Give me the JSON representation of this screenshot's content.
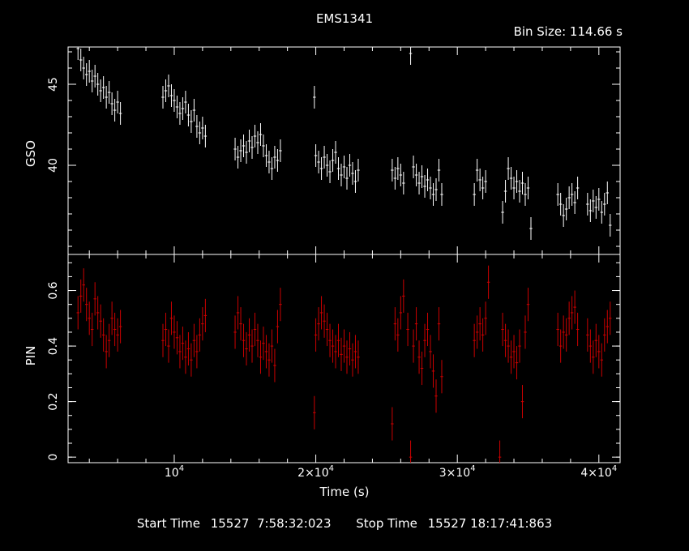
{
  "title": "EMS1341",
  "bin_size_text": "Bin Size: 114.66 s",
  "footer": {
    "start_label": "Start Time",
    "start_value": "15527  7:58:32:023",
    "stop_label": "Stop Time",
    "stop_value": "15527 18:17:41:863"
  },
  "colors": {
    "background": "#000000",
    "axes": "#ffffff",
    "gso": "#ffffff",
    "pin": "#cc0000"
  },
  "chart_data": {
    "type": "scatter",
    "xlabel": "Time (s)",
    "xlim": [
      2500,
      41500
    ],
    "x_ticks": [
      {
        "value": 10000,
        "mantissa": "10",
        "exponent": "4"
      },
      {
        "value": 20000,
        "mantissa": "2×10",
        "exponent": "4"
      },
      {
        "value": 30000,
        "mantissa": "3×10",
        "exponent": "4"
      },
      {
        "value": 40000,
        "mantissa": "4×10",
        "exponent": "4"
      }
    ],
    "panels": [
      {
        "ylabel": "GSO",
        "ylim": [
          34.5,
          47.3
        ],
        "y_ticks": [
          40,
          45
        ],
        "y_tick_labels": [
          "40",
          "45"
        ],
        "y_minor_step": 1,
        "color": "#ffffff",
        "series": [
          {
            "points": [
              [
                3200,
                47.2
              ],
              [
                3400,
                46.5
              ],
              [
                3600,
                46.0
              ],
              [
                3800,
                45.6
              ],
              [
                4000,
                45.8
              ],
              [
                4200,
                45.2
              ],
              [
                4400,
                45.5
              ],
              [
                4600,
                45.0
              ],
              [
                4800,
                44.6
              ],
              [
                5000,
                44.8
              ],
              [
                5200,
                44.2
              ],
              [
                5400,
                44.5
              ],
              [
                5600,
                43.8
              ],
              [
                5800,
                43.4
              ],
              [
                6000,
                43.9
              ],
              [
                6200,
                43.2
              ],
              [
                9200,
                44.2
              ],
              [
                9400,
                44.6
              ],
              [
                9600,
                44.9
              ],
              [
                9800,
                44.3
              ],
              [
                10000,
                44.0
              ],
              [
                10200,
                43.6
              ],
              [
                10400,
                43.2
              ],
              [
                10600,
                43.5
              ],
              [
                10800,
                43.9
              ],
              [
                11000,
                43.1
              ],
              [
                11200,
                42.7
              ],
              [
                11400,
                43.4
              ],
              [
                11600,
                42.4
              ],
              [
                11800,
                42.0
              ],
              [
                12000,
                42.3
              ],
              [
                12200,
                41.8
              ],
              [
                14300,
                41.0
              ],
              [
                14500,
                40.5
              ],
              [
                14700,
                40.9
              ],
              [
                14900,
                41.2
              ],
              [
                15100,
                40.8
              ],
              [
                15300,
                41.5
              ],
              [
                15500,
                41.1
              ],
              [
                15700,
                41.8
              ],
              [
                15900,
                41.4
              ],
              [
                16100,
                41.9
              ],
              [
                16300,
                41.2
              ],
              [
                16500,
                40.6
              ],
              [
                16700,
                40.2
              ],
              [
                16900,
                39.8
              ],
              [
                17100,
                40.5
              ],
              [
                17300,
                40.3
              ],
              [
                17500,
                40.9
              ],
              [
                19900,
                44.2
              ],
              [
                20000,
                40.6
              ],
              [
                20200,
                40.2
              ],
              [
                20400,
                39.8
              ],
              [
                20600,
                40.5
              ],
              [
                20800,
                40.0
              ],
              [
                21000,
                39.6
              ],
              [
                21200,
                40.3
              ],
              [
                21400,
                40.8
              ],
              [
                21600,
                39.8
              ],
              [
                21800,
                39.4
              ],
              [
                22000,
                39.9
              ],
              [
                22200,
                39.2
              ],
              [
                22400,
                40.0
              ],
              [
                22600,
                39.5
              ],
              [
                22800,
                39.0
              ],
              [
                23000,
                39.7
              ],
              [
                25400,
                39.7
              ],
              [
                25600,
                39.2
              ],
              [
                25800,
                39.8
              ],
              [
                26000,
                39.4
              ],
              [
                26200,
                38.9
              ],
              [
                26700,
                46.9
              ],
              [
                26900,
                39.9
              ],
              [
                27100,
                39.4
              ],
              [
                27300,
                38.9
              ],
              [
                27500,
                39.3
              ],
              [
                27700,
                38.7
              ],
              [
                27900,
                39.1
              ],
              [
                28100,
                38.6
              ],
              [
                28300,
                38.2
              ],
              [
                28500,
                38.5
              ],
              [
                28700,
                39.7
              ],
              [
                28900,
                38.2
              ],
              [
                31200,
                38.2
              ],
              [
                31400,
                39.7
              ],
              [
                31600,
                39.1
              ],
              [
                31800,
                38.6
              ],
              [
                32000,
                39.0
              ],
              [
                33200,
                37.1
              ],
              [
                33400,
                38.4
              ],
              [
                33600,
                39.8
              ],
              [
                33800,
                39.2
              ],
              [
                34000,
                38.6
              ],
              [
                34200,
                39.0
              ],
              [
                34400,
                38.4
              ],
              [
                34600,
                38.9
              ],
              [
                34800,
                38.2
              ],
              [
                35000,
                38.6
              ],
              [
                35200,
                36.1
              ],
              [
                37100,
                38.2
              ],
              [
                37300,
                37.6
              ],
              [
                37500,
                36.9
              ],
              [
                37700,
                37.3
              ],
              [
                37900,
                38.0
              ],
              [
                38100,
                38.2
              ],
              [
                38300,
                37.7
              ],
              [
                38500,
                38.6
              ],
              [
                39200,
                37.6
              ],
              [
                39400,
                37.2
              ],
              [
                39600,
                37.8
              ],
              [
                39800,
                37.4
              ],
              [
                40000,
                37.9
              ],
              [
                40200,
                37.1
              ],
              [
                40400,
                37.6
              ],
              [
                40600,
                38.3
              ],
              [
                40800,
                36.3
              ]
            ]
          }
        ]
      },
      {
        "ylabel": "PIN",
        "ylim": [
          -0.02,
          0.73
        ],
        "y_ticks": [
          0,
          0.2,
          0.4,
          0.6
        ],
        "y_tick_labels": [
          "0",
          "0.2",
          "0.4",
          "0.6"
        ],
        "y_minor_step": 0.05,
        "color": "#cc0000",
        "series": [
          {
            "points": [
              [
                3200,
                0.52
              ],
              [
                3400,
                0.58
              ],
              [
                3600,
                0.62
              ],
              [
                3800,
                0.55
              ],
              [
                4000,
                0.5
              ],
              [
                4200,
                0.46
              ],
              [
                4400,
                0.57
              ],
              [
                4600,
                0.52
              ],
              [
                4800,
                0.49
              ],
              [
                5000,
                0.44
              ],
              [
                5200,
                0.38
              ],
              [
                5400,
                0.42
              ],
              [
                5600,
                0.5
              ],
              [
                5800,
                0.46
              ],
              [
                6000,
                0.44
              ],
              [
                6200,
                0.47
              ],
              [
                9200,
                0.42
              ],
              [
                9400,
                0.46
              ],
              [
                9600,
                0.4
              ],
              [
                9800,
                0.5
              ],
              [
                10000,
                0.45
              ],
              [
                10200,
                0.43
              ],
              [
                10400,
                0.38
              ],
              [
                10600,
                0.41
              ],
              [
                10800,
                0.36
              ],
              [
                11000,
                0.39
              ],
              [
                11200,
                0.35
              ],
              [
                11400,
                0.42
              ],
              [
                11600,
                0.38
              ],
              [
                11800,
                0.44
              ],
              [
                12000,
                0.48
              ],
              [
                12200,
                0.51
              ],
              [
                14300,
                0.45
              ],
              [
                14500,
                0.52
              ],
              [
                14700,
                0.48
              ],
              [
                14900,
                0.42
              ],
              [
                15100,
                0.39
              ],
              [
                15300,
                0.44
              ],
              [
                15500,
                0.4
              ],
              [
                15700,
                0.46
              ],
              [
                15900,
                0.42
              ],
              [
                16100,
                0.36
              ],
              [
                16300,
                0.41
              ],
              [
                16500,
                0.38
              ],
              [
                16700,
                0.35
              ],
              [
                16900,
                0.4
              ],
              [
                17100,
                0.33
              ],
              [
                17300,
                0.47
              ],
              [
                17500,
                0.55
              ],
              [
                19900,
                0.16
              ],
              [
                20000,
                0.44
              ],
              [
                20200,
                0.48
              ],
              [
                20400,
                0.52
              ],
              [
                20600,
                0.49
              ],
              [
                20800,
                0.46
              ],
              [
                21000,
                0.42
              ],
              [
                21200,
                0.4
              ],
              [
                21400,
                0.38
              ],
              [
                21600,
                0.42
              ],
              [
                21800,
                0.37
              ],
              [
                22000,
                0.4
              ],
              [
                22200,
                0.36
              ],
              [
                22400,
                0.39
              ],
              [
                22600,
                0.35
              ],
              [
                22800,
                0.38
              ],
              [
                23000,
                0.36
              ],
              [
                25400,
                0.12
              ],
              [
                25600,
                0.48
              ],
              [
                25800,
                0.44
              ],
              [
                26000,
                0.52
              ],
              [
                26200,
                0.58
              ],
              [
                26500,
                0.46
              ],
              [
                26700,
                0.0
              ],
              [
                26900,
                0.4
              ],
              [
                27100,
                0.48
              ],
              [
                27300,
                0.36
              ],
              [
                27500,
                0.32
              ],
              [
                27700,
                0.42
              ],
              [
                27900,
                0.46
              ],
              [
                28100,
                0.38
              ],
              [
                28300,
                0.31
              ],
              [
                28500,
                0.22
              ],
              [
                28700,
                0.48
              ],
              [
                28900,
                0.29
              ],
              [
                31200,
                0.42
              ],
              [
                31400,
                0.45
              ],
              [
                31600,
                0.48
              ],
              [
                31800,
                0.44
              ],
              [
                32000,
                0.5
              ],
              [
                32200,
                0.63
              ],
              [
                33000,
                0.0
              ],
              [
                33200,
                0.46
              ],
              [
                33400,
                0.42
              ],
              [
                33600,
                0.4
              ],
              [
                33800,
                0.36
              ],
              [
                34000,
                0.38
              ],
              [
                34200,
                0.34
              ],
              [
                34400,
                0.4
              ],
              [
                34600,
                0.2
              ],
              [
                34800,
                0.45
              ],
              [
                35000,
                0.55
              ],
              [
                37100,
                0.46
              ],
              [
                37300,
                0.4
              ],
              [
                37500,
                0.45
              ],
              [
                37700,
                0.44
              ],
              [
                37900,
                0.5
              ],
              [
                38100,
                0.52
              ],
              [
                38300,
                0.54
              ],
              [
                38500,
                0.46
              ],
              [
                39200,
                0.44
              ],
              [
                39400,
                0.4
              ],
              [
                39600,
                0.36
              ],
              [
                39800,
                0.42
              ],
              [
                40000,
                0.38
              ],
              [
                40200,
                0.35
              ],
              [
                40400,
                0.44
              ],
              [
                40600,
                0.47
              ],
              [
                40800,
                0.5
              ]
            ]
          }
        ]
      }
    ]
  }
}
